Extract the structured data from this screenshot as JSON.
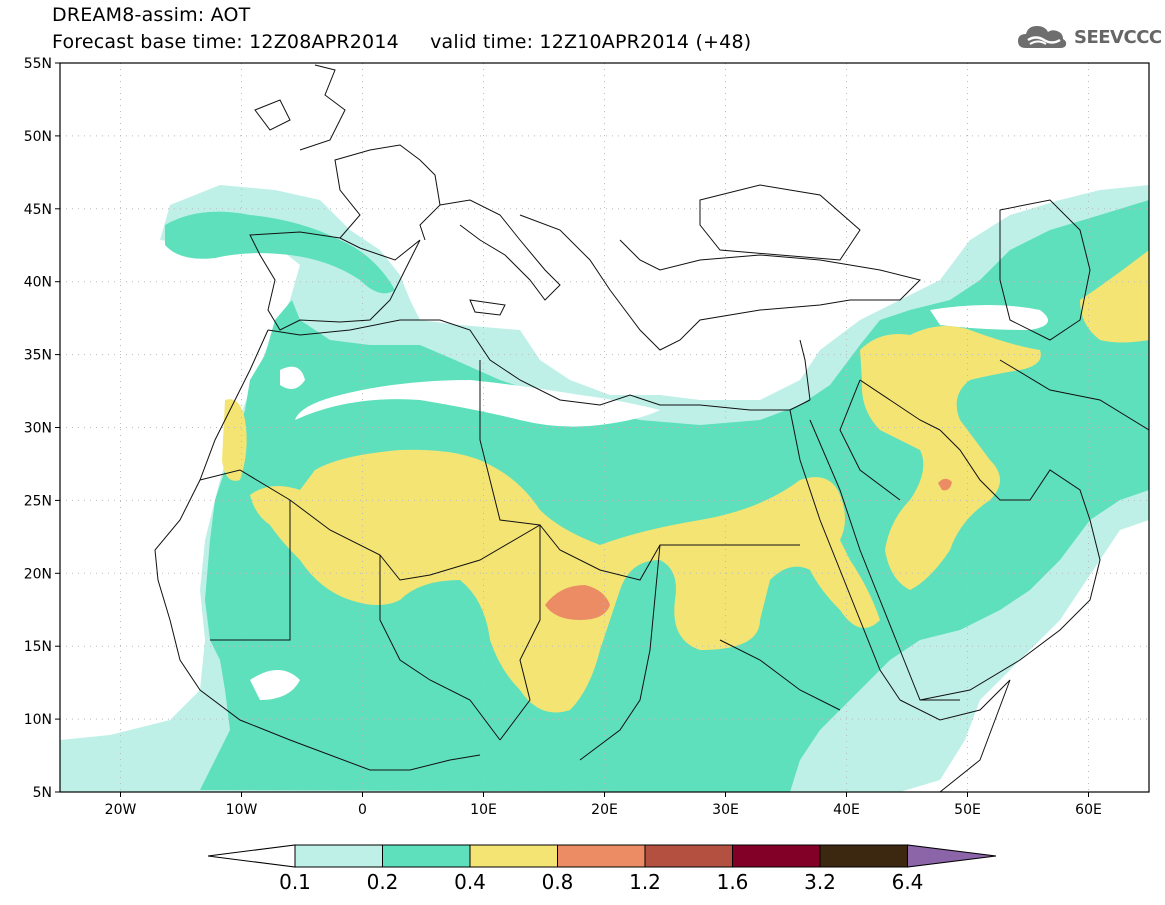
{
  "header": {
    "line1": "DREAM8-assim: AOT",
    "line2": "Forecast base time: 12Z08APR2014     valid time: 12Z10APR2014 (+48)"
  },
  "brand": {
    "name": "SEEVCCC",
    "icon": "cloud-logo-icon"
  },
  "map": {
    "lon_range": [
      -25,
      65
    ],
    "lat_range": [
      5,
      55
    ],
    "lat_ticks": [
      "55N",
      "50N",
      "45N",
      "40N",
      "35N",
      "30N",
      "25N",
      "20N",
      "15N",
      "10N",
      "5N"
    ],
    "lon_ticks": [
      "20W",
      "10W",
      "0",
      "10E",
      "20E",
      "30E",
      "40E",
      "50E",
      "60E"
    ],
    "grid": true
  },
  "colorbar": {
    "labels": [
      "0.1",
      "0.2",
      "0.4",
      "0.8",
      "1.2",
      "1.6",
      "3.2",
      "6.4"
    ],
    "colors": [
      "#bff0e8",
      "#5ee0bc",
      "#f4e474",
      "#ec8c64",
      "#b45040",
      "#820028",
      "#3c2810",
      "#8c64a8"
    ]
  }
}
